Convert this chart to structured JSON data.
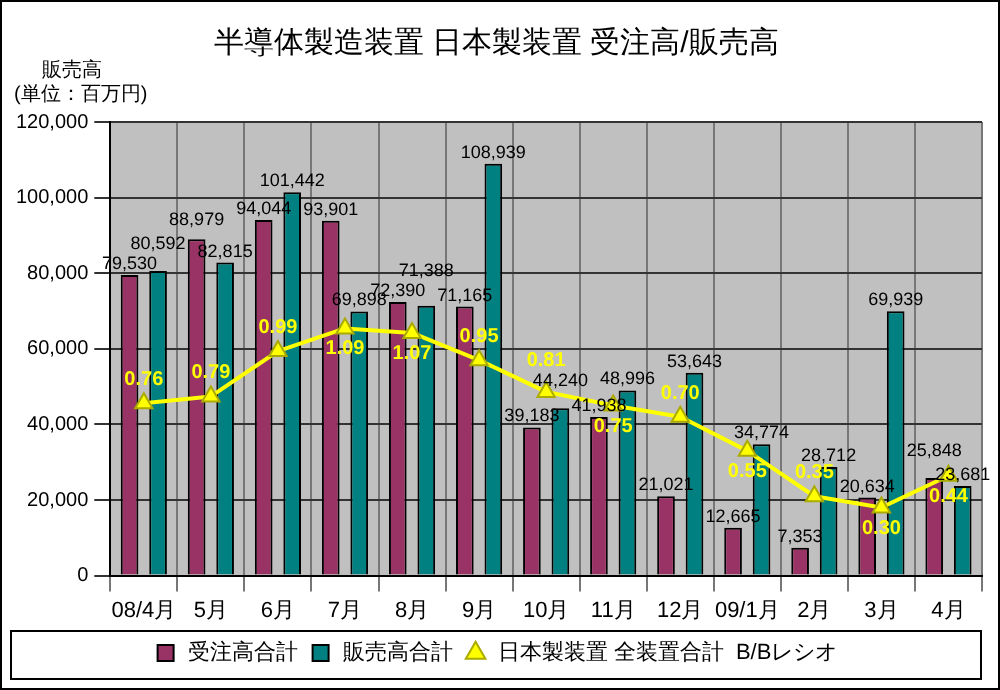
{
  "chart_data": {
    "type": "bar",
    "title": "半導体製造装置 日本製装置 受注高/販売高",
    "ylabel": "販売高\n(単位：百万円)",
    "categories": [
      "08/4月",
      "5月",
      "6月",
      "7月",
      "8月",
      "9月",
      "10月",
      "11月",
      "12月",
      "09/1月",
      "2月",
      "3月",
      "4月"
    ],
    "series": [
      {
        "name": "受注高合計",
        "color": "#993366",
        "values": [
          79530,
          88979,
          94044,
          93901,
          72390,
          71165,
          39183,
          41938,
          21021,
          12665,
          7353,
          20634,
          25848
        ],
        "value_labels": [
          "79,530",
          "88,979",
          "94,044",
          "93,901",
          "72,390",
          "71,165",
          "39,183",
          "41,938",
          "21,021",
          "12,665",
          "7,353",
          "20,634",
          "25,848"
        ]
      },
      {
        "name": "販売高合計",
        "color": "#008080",
        "values": [
          80592,
          82815,
          101442,
          69898,
          71388,
          108939,
          44240,
          48996,
          53643,
          34774,
          28712,
          69939,
          23681
        ],
        "value_labels": [
          "80,592",
          "82,815",
          "101,442",
          "69,898",
          "71,388",
          "108,939",
          "44,240",
          "48,996",
          "53,643",
          "34,774",
          "28,712",
          "69,939",
          "23,681"
        ]
      },
      {
        "name": "日本製装置 全装置合計  B/Bレシオ",
        "type": "line",
        "axis": "y2",
        "color": "#ffff00",
        "marker": "triangle",
        "line_style": "solid",
        "values": [
          0.76,
          0.79,
          0.99,
          1.09,
          1.07,
          0.95,
          0.81,
          0.75,
          0.7,
          0.55,
          0.35,
          0.3,
          0.44
        ],
        "value_labels": [
          "0.76",
          "0.79",
          "0.99",
          "1.09",
          "1.07",
          "0.95",
          "0.81",
          "0.75",
          "0.70",
          "0.55",
          "0.35",
          "0.30",
          "0.44"
        ]
      }
    ],
    "ylim": [
      0,
      120000
    ],
    "yticks": [
      0,
      {
        "value": 20000,
        "label": "20,000"
      },
      {
        "value": 40000,
        "label": "40,000"
      },
      {
        "value": 60000,
        "label": "60,000"
      },
      {
        "value": 80000,
        "label": "80,000"
      },
      {
        "value": 100000,
        "label": "100,000"
      },
      {
        "value": 120000,
        "label": "120,000"
      }
    ],
    "grid": true,
    "legend": "bottom"
  }
}
